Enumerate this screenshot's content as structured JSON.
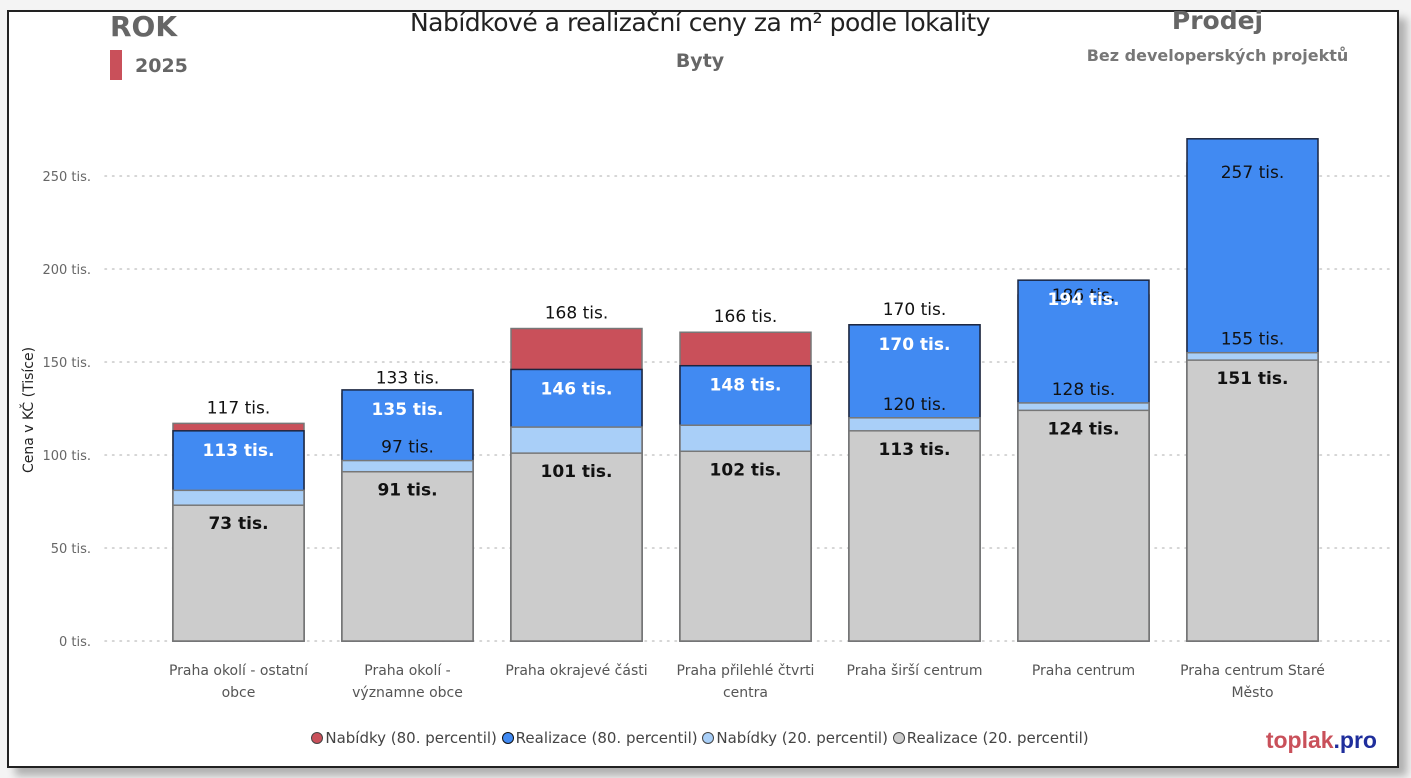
{
  "header": {
    "rok_label": "ROK",
    "year": "2025",
    "year_color": "#c9505a",
    "title": "Nabídkové a realizační ceny za m² podle lokality",
    "subtitle": "Byty",
    "type_label": "Prodej",
    "filter_label": "Bez developerských projektů"
  },
  "brand": {
    "part1": "toplak",
    "part2": ".pro"
  },
  "chart_data": {
    "type": "bar",
    "mode": "overlapping",
    "title": "Nabídkové a realizační ceny za m² podle lokality",
    "subtitle": "Byty",
    "xlabel": "",
    "ylabel": "Cena v KČ (Tisíce)",
    "ylim": [
      0,
      280
    ],
    "yticks": [
      0,
      50,
      100,
      150,
      200,
      250
    ],
    "ytick_labels": [
      "0 tis.",
      "50 tis.",
      "100 tis.",
      "150 tis.",
      "200 tis.",
      "250 tis."
    ],
    "grid": true,
    "legend_position": "bottom",
    "categories": [
      [
        "Praha okolí - ostatní",
        "obce"
      ],
      [
        "Praha okolí -",
        "významne obce"
      ],
      [
        "Praha okrajevé části"
      ],
      [
        "Praha přilehlé čtvrti",
        "centra"
      ],
      [
        "Praha širší centrum"
      ],
      [
        "Praha centrum"
      ],
      [
        "Praha centrum Staré",
        "Město"
      ]
    ],
    "series": [
      {
        "name": "Nabídky (80. percentil)",
        "color": "#c9505a",
        "stroke": "#777777",
        "values": [
          117,
          133,
          168,
          166,
          170,
          186,
          257
        ],
        "labels": [
          "117 tis.",
          "133 tis.",
          "168 tis.",
          "166 tis.",
          "170 tis.",
          "186 tis.",
          "257 tis."
        ],
        "label_style": "normal-dark"
      },
      {
        "name": "Realizace (80. percentil)",
        "color": "#418af2",
        "stroke": "#1a2540",
        "values": [
          113,
          135,
          146,
          148,
          170,
          194,
          270
        ],
        "labels": [
          "113 tis.",
          "135 tis.",
          "146 tis.",
          "148 tis.",
          "170 tis.",
          "194 tis.",
          ""
        ],
        "label_style": "bold-white"
      },
      {
        "name": "Nabídky (20. percentil)",
        "color": "#a9cff8",
        "stroke": "#777777",
        "values": [
          81,
          97,
          115,
          116,
          120,
          128,
          155
        ],
        "labels": [
          "",
          "97 tis.",
          "",
          "",
          "120 tis.",
          "128 tis.",
          "155 tis."
        ],
        "label_style": "normal-dark"
      },
      {
        "name": "Realizace (20. percentil)",
        "color": "#cccccc",
        "stroke": "#777777",
        "values": [
          73,
          91,
          101,
          102,
          113,
          124,
          151
        ],
        "labels": [
          "73 tis.",
          "91 tis.",
          "101 tis.",
          "102 tis.",
          "113 tis.",
          "124 tis.",
          "151 tis."
        ],
        "label_style": "bold-dark"
      }
    ]
  }
}
